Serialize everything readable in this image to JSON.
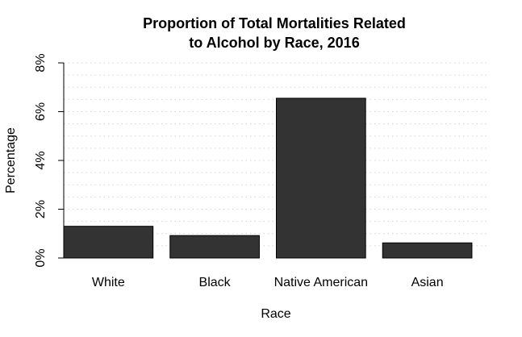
{
  "chart_data": {
    "type": "bar",
    "title": [
      "Proportion of Total Mortalities Related",
      "to Alcohol by Race, 2016"
    ],
    "xlabel": "Race",
    "ylabel": "Percentage",
    "categories": [
      "White",
      "Black",
      "Native American",
      "Asian"
    ],
    "values": [
      1.3,
      0.92,
      6.55,
      0.62
    ],
    "unit": "%",
    "ylim": [
      0,
      8
    ],
    "yticks": [
      0,
      2,
      4,
      6,
      8
    ],
    "ytick_labels": [
      "0%",
      "2%",
      "4%",
      "6%",
      "8%"
    ],
    "grid": "horizontal dotted",
    "colors": {
      "bar": "#333333",
      "bar_edge": "#000000",
      "grid": "#d3d3d3",
      "axis": "#000000"
    }
  }
}
